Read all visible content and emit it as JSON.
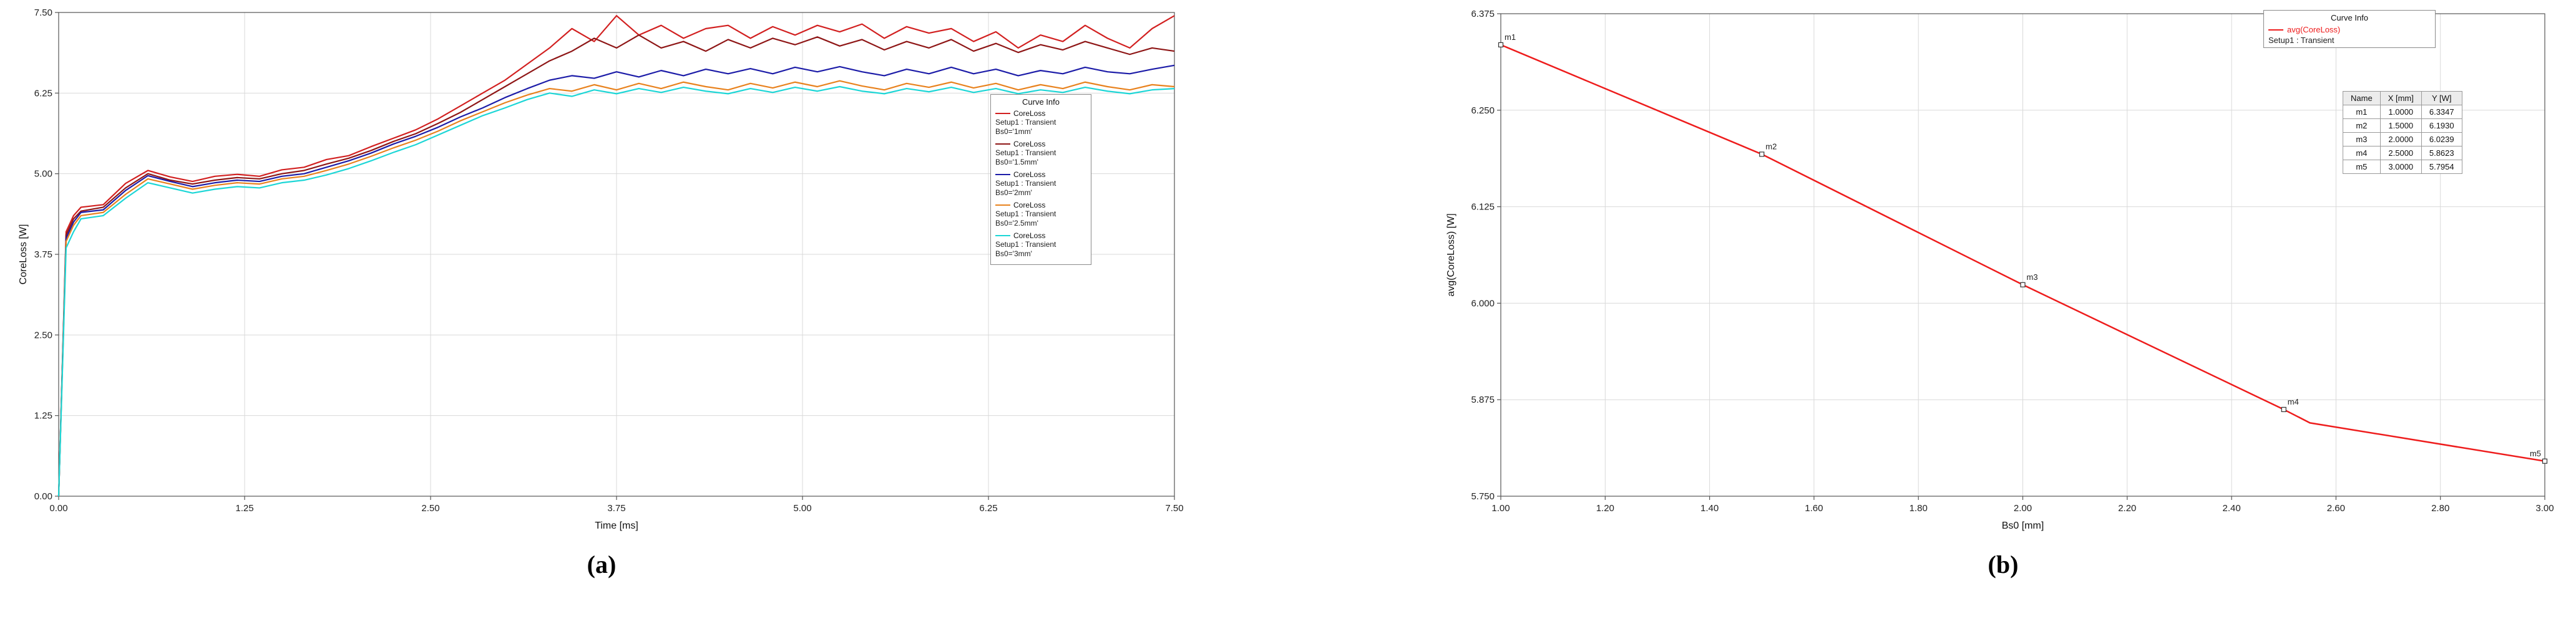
{
  "captions": {
    "a": "(a)",
    "b": "(b)"
  },
  "chart_data": [
    {
      "type": "line",
      "title": "",
      "xlabel": "Time [ms]",
      "ylabel": "CoreLoss [W]",
      "xlim": [
        0,
        7.5
      ],
      "ylim": [
        0,
        7.5
      ],
      "grid": true,
      "legend_title": "Curve Info",
      "legend_position": "right-inside",
      "xticks": [
        "0.00",
        "1.25",
        "2.50",
        "3.75",
        "5.00",
        "6.25",
        "7.50"
      ],
      "yticks": [
        "0.00",
        "1.25",
        "2.50",
        "3.75",
        "5.00",
        "6.25",
        "7.50"
      ],
      "x": [
        0,
        0.05,
        0.1,
        0.15,
        0.3,
        0.45,
        0.6,
        0.75,
        0.9,
        1.05,
        1.2,
        1.35,
        1.5,
        1.65,
        1.8,
        1.95,
        2.1,
        2.25,
        2.4,
        2.55,
        2.7,
        2.85,
        3,
        3.15,
        3.3,
        3.45,
        3.6,
        3.75,
        3.9,
        4.05,
        4.2,
        4.35,
        4.5,
        4.65,
        4.8,
        4.95,
        5.1,
        5.25,
        5.4,
        5.55,
        5.7,
        5.85,
        6,
        6.15,
        6.3,
        6.45,
        6.6,
        6.75,
        6.9,
        7.05,
        7.2,
        7.35,
        7.5
      ],
      "series": [
        {
          "name": "CoreLoss",
          "setup": "Setup1 : Transient",
          "variation": "Bs0='1mm'",
          "color": "#d22020",
          "y": [
            0,
            4.1,
            4.35,
            4.48,
            4.52,
            4.85,
            5.05,
            4.95,
            4.88,
            4.96,
            4.99,
            4.96,
            5.06,
            5.1,
            5.22,
            5.28,
            5.42,
            5.55,
            5.68,
            5.85,
            6.05,
            6.25,
            6.45,
            6.7,
            6.95,
            7.25,
            7.05,
            7.45,
            7.15,
            7.3,
            7.1,
            7.25,
            7.3,
            7.1,
            7.28,
            7.15,
            7.3,
            7.2,
            7.32,
            7.1,
            7.28,
            7.18,
            7.25,
            7.05,
            7.2,
            6.95,
            7.15,
            7.05,
            7.3,
            7.1,
            6.95,
            7.25,
            7.45
          ]
        },
        {
          "name": "CoreLoss",
          "setup": "Setup1 : Transient",
          "variation": "Bs0='1.5mm'",
          "color": "#8e1616",
          "y": [
            0,
            4.05,
            4.3,
            4.42,
            4.48,
            4.78,
            5.0,
            4.9,
            4.84,
            4.9,
            4.94,
            4.92,
            5.0,
            5.05,
            5.15,
            5.24,
            5.36,
            5.5,
            5.62,
            5.78,
            5.95,
            6.15,
            6.35,
            6.55,
            6.75,
            6.9,
            7.1,
            6.95,
            7.15,
            6.95,
            7.05,
            6.9,
            7.08,
            6.95,
            7.1,
            7.0,
            7.12,
            6.98,
            7.08,
            6.92,
            7.05,
            6.95,
            7.08,
            6.9,
            7.02,
            6.88,
            7.0,
            6.92,
            7.05,
            6.95,
            6.85,
            6.95,
            6.9
          ]
        },
        {
          "name": "CoreLoss",
          "setup": "Setup1 : Transient",
          "variation": "Bs0='2mm'",
          "color": "#1c1ca8",
          "y": [
            0,
            4.0,
            4.25,
            4.4,
            4.44,
            4.74,
            4.97,
            4.88,
            4.8,
            4.86,
            4.9,
            4.88,
            4.96,
            5.0,
            5.1,
            5.2,
            5.32,
            5.46,
            5.58,
            5.72,
            5.88,
            6.02,
            6.18,
            6.32,
            6.45,
            6.52,
            6.48,
            6.58,
            6.5,
            6.6,
            6.52,
            6.62,
            6.55,
            6.63,
            6.55,
            6.65,
            6.58,
            6.66,
            6.58,
            6.52,
            6.62,
            6.55,
            6.65,
            6.55,
            6.62,
            6.52,
            6.6,
            6.55,
            6.65,
            6.58,
            6.55,
            6.62,
            6.68
          ]
        },
        {
          "name": "CoreLoss",
          "setup": "Setup1 : Transient",
          "variation": "Bs0='2.5mm'",
          "color": "#e8821e",
          "y": [
            0,
            3.95,
            4.2,
            4.35,
            4.4,
            4.68,
            4.92,
            4.84,
            4.76,
            4.82,
            4.86,
            4.84,
            4.92,
            4.96,
            5.05,
            5.15,
            5.27,
            5.4,
            5.52,
            5.66,
            5.82,
            5.96,
            6.1,
            6.22,
            6.32,
            6.28,
            6.38,
            6.3,
            6.4,
            6.32,
            6.42,
            6.35,
            6.3,
            6.4,
            6.33,
            6.42,
            6.35,
            6.44,
            6.36,
            6.3,
            6.4,
            6.34,
            6.42,
            6.33,
            6.4,
            6.3,
            6.38,
            6.32,
            6.42,
            6.35,
            6.3,
            6.38,
            6.35
          ]
        },
        {
          "name": "CoreLoss",
          "setup": "Setup1 : Transient",
          "variation": "Bs0='3mm'",
          "color": "#1cd6d6",
          "y": [
            0,
            3.85,
            4.1,
            4.3,
            4.35,
            4.62,
            4.86,
            4.78,
            4.7,
            4.76,
            4.8,
            4.78,
            4.86,
            4.9,
            4.98,
            5.08,
            5.2,
            5.33,
            5.45,
            5.6,
            5.75,
            5.9,
            6.02,
            6.15,
            6.25,
            6.2,
            6.3,
            6.24,
            6.32,
            6.26,
            6.34,
            6.28,
            6.24,
            6.32,
            6.26,
            6.34,
            6.28,
            6.35,
            6.28,
            6.24,
            6.32,
            6.27,
            6.34,
            6.26,
            6.32,
            6.24,
            6.3,
            6.26,
            6.34,
            6.28,
            6.24,
            6.3,
            6.32
          ]
        }
      ]
    },
    {
      "type": "line",
      "title": "",
      "xlabel": "Bs0 [mm]",
      "ylabel": "avg(CoreLoss) [W]",
      "xlim": [
        1,
        3
      ],
      "ylim": [
        5.75,
        6.375
      ],
      "grid": true,
      "legend_title": "Curve Info",
      "legend_position": "top-right",
      "xticks": [
        "1.00",
        "1.20",
        "1.40",
        "1.60",
        "1.80",
        "2.00",
        "2.20",
        "2.40",
        "2.60",
        "2.80",
        "3.00"
      ],
      "yticks": [
        "5.750",
        "5.875",
        "6.000",
        "6.125",
        "6.250",
        "6.375"
      ],
      "series": [
        {
          "name": "avg(CoreLoss)",
          "setup": "Setup1 : Transient",
          "color": "#ee1c1c",
          "x": [
            1.0,
            1.5,
            2.0,
            2.5,
            2.55,
            3.0
          ],
          "y": [
            6.3347,
            6.193,
            6.0239,
            5.8623,
            5.845,
            5.7954
          ]
        }
      ],
      "markers": [
        {
          "name": "m1",
          "x": 1.0,
          "y": 6.3347
        },
        {
          "name": "m2",
          "x": 1.5,
          "y": 6.193
        },
        {
          "name": "m3",
          "x": 2.0,
          "y": 6.0239
        },
        {
          "name": "m4",
          "x": 2.5,
          "y": 5.8623
        },
        {
          "name": "m5",
          "x": 3.0,
          "y": 5.7954
        }
      ],
      "table": {
        "headers": [
          "Name",
          "X [mm]",
          "Y [W]"
        ],
        "rows": [
          [
            "m1",
            "1.0000",
            "6.3347"
          ],
          [
            "m2",
            "1.5000",
            "6.1930"
          ],
          [
            "m3",
            "2.0000",
            "6.0239"
          ],
          [
            "m4",
            "2.5000",
            "5.8623"
          ],
          [
            "m5",
            "3.0000",
            "5.7954"
          ]
        ]
      }
    }
  ]
}
